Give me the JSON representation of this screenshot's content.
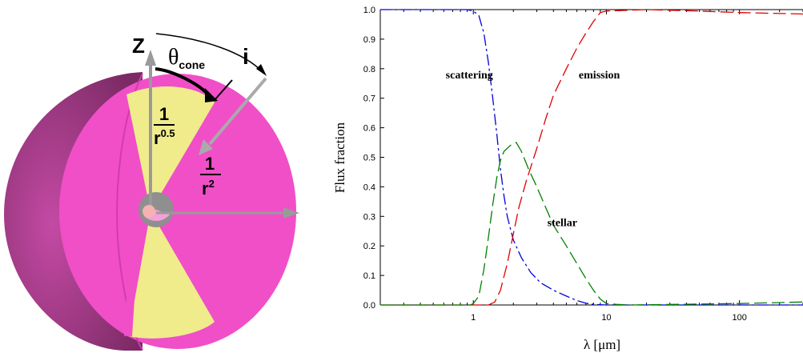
{
  "diagram": {
    "axis_z": "Z",
    "theta_symbol": "θ",
    "theta_sub": "cone",
    "incl_label": "i",
    "frac_num_1": "1",
    "frac_den_1_base": "r",
    "frac_den_1_exp": "0.5",
    "frac_num_2": "1",
    "frac_den_2_base": "r",
    "frac_den_2_exp": "2",
    "colors": {
      "sphere": "#f04fc8",
      "sphere_shadow": "#b8338f",
      "cone": "#f0ec8c",
      "core": "#9a9a9a",
      "star": "#f6b2b2",
      "arrow": "#9a9a9a"
    }
  },
  "chart_data": {
    "type": "line",
    "xscale": "log",
    "xlim": [
      0.2,
      300
    ],
    "ylim": [
      0,
      1
    ],
    "xlabel": "λ [μm]",
    "ylabel": "Flux fraction",
    "xticks": [
      {
        "value": 1,
        "label": "1"
      },
      {
        "value": 10,
        "label": "10"
      },
      {
        "value": 100,
        "label": "100"
      }
    ],
    "yticks": [
      "0.0",
      "0.1",
      "0.2",
      "0.3",
      "0.4",
      "0.5",
      "0.6",
      "0.7",
      "0.8",
      "0.9",
      "1.0"
    ],
    "series": [
      {
        "name": "scattering",
        "color": "#0000e0",
        "dash": "dashdot",
        "points": [
          [
            0.2,
            1.0
          ],
          [
            0.5,
            1.0
          ],
          [
            0.9,
            1.0
          ],
          [
            1.0,
            0.995
          ],
          [
            1.1,
            0.98
          ],
          [
            1.2,
            0.92
          ],
          [
            1.3,
            0.82
          ],
          [
            1.4,
            0.7
          ],
          [
            1.5,
            0.58
          ],
          [
            1.6,
            0.46
          ],
          [
            1.7,
            0.37
          ],
          [
            1.8,
            0.3
          ],
          [
            2.0,
            0.22
          ],
          [
            2.3,
            0.16
          ],
          [
            2.7,
            0.11
          ],
          [
            3.2,
            0.075
          ],
          [
            4.0,
            0.05
          ],
          [
            5.0,
            0.03
          ],
          [
            6.0,
            0.015
          ],
          [
            7.0,
            0.006
          ],
          [
            8.0,
            0.002
          ],
          [
            10,
            0.0
          ],
          [
            300,
            0.0
          ]
        ]
      },
      {
        "name": "emission",
        "color": "#e00000",
        "dash": "long",
        "points": [
          [
            0.2,
            0.0
          ],
          [
            1.0,
            0.0
          ],
          [
            1.3,
            0.0
          ],
          [
            1.45,
            0.01
          ],
          [
            1.6,
            0.05
          ],
          [
            1.8,
            0.14
          ],
          [
            2.0,
            0.24
          ],
          [
            2.2,
            0.33
          ],
          [
            2.5,
            0.42
          ],
          [
            3.0,
            0.53
          ],
          [
            3.5,
            0.63
          ],
          [
            4.0,
            0.71
          ],
          [
            5.0,
            0.8
          ],
          [
            6.0,
            0.87
          ],
          [
            7.0,
            0.92
          ],
          [
            8.0,
            0.96
          ],
          [
            9.0,
            0.99
          ],
          [
            10,
            0.995
          ],
          [
            20,
            1.0
          ],
          [
            50,
            0.995
          ],
          [
            100,
            0.99
          ],
          [
            300,
            0.985
          ]
        ]
      },
      {
        "name": "stellar",
        "color": "#008000",
        "dash": "long",
        "points": [
          [
            0.2,
            0.0
          ],
          [
            0.95,
            0.0
          ],
          [
            1.0,
            0.005
          ],
          [
            1.1,
            0.03
          ],
          [
            1.2,
            0.12
          ],
          [
            1.3,
            0.23
          ],
          [
            1.4,
            0.34
          ],
          [
            1.5,
            0.43
          ],
          [
            1.6,
            0.49
          ],
          [
            1.7,
            0.52
          ],
          [
            1.9,
            0.54
          ],
          [
            2.1,
            0.55
          ],
          [
            2.3,
            0.52
          ],
          [
            2.6,
            0.46
          ],
          [
            3.0,
            0.4
          ],
          [
            3.5,
            0.33
          ],
          [
            4.0,
            0.27
          ],
          [
            5.0,
            0.2
          ],
          [
            6.0,
            0.14
          ],
          [
            7.0,
            0.09
          ],
          [
            8.0,
            0.05
          ],
          [
            9.0,
            0.02
          ],
          [
            10,
            0.005
          ],
          [
            12,
            0.002
          ],
          [
            15,
            0.0
          ],
          [
            100,
            0.005
          ],
          [
            300,
            0.01
          ]
        ]
      }
    ],
    "annotations": [
      {
        "text": "scattering",
        "x": 0.62,
        "y": 0.78
      },
      {
        "text": "emission",
        "x": 6.2,
        "y": 0.78
      },
      {
        "text": "stellar",
        "x": 3.6,
        "y": 0.28
      }
    ]
  }
}
